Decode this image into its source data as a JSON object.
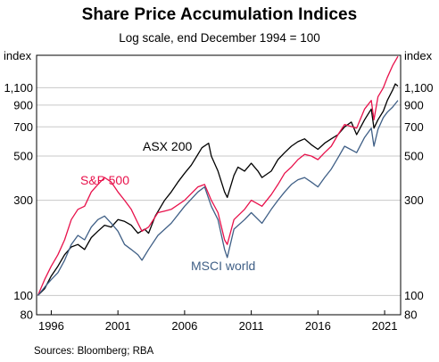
{
  "chart_data": {
    "type": "line",
    "title": "Share Price Accumulation Indices",
    "subtitle": "Log scale, end December 1994 = 100",
    "ylabel_left": "index",
    "ylabel_right": "index",
    "yscale": "log",
    "ylim": [
      80,
      1600
    ],
    "xlim": [
      1994.9,
      2022.2
    ],
    "yticks": [
      80,
      100,
      300,
      500,
      700,
      900,
      1100
    ],
    "ytick_labels": [
      "80",
      "100",
      "300",
      "500",
      "700",
      "900",
      "1,100"
    ],
    "xticks": [
      1996,
      2001,
      2006,
      2011,
      2016,
      2021
    ],
    "xtick_labels": [
      "1996",
      "2001",
      "2006",
      "2011",
      "2016",
      "2021"
    ],
    "grid": true,
    "source": "Sources: Bloomberg; RBA",
    "colors": {
      "asx": "#000000",
      "sp": "#e8114b",
      "msci": "#3f5f86",
      "grid": "#c8c8c8"
    },
    "series": [
      {
        "name": "ASX 200",
        "key": "asx",
        "x": [
          1995.0,
          1995.5,
          1996.0,
          1996.5,
          1997.0,
          1997.5,
          1998.0,
          1998.5,
          1999.0,
          1999.5,
          2000.0,
          2000.5,
          2001.0,
          2001.5,
          2002.0,
          2002.5,
          2003.0,
          2003.3,
          2003.8,
          2004.5,
          2005.0,
          2005.5,
          2006.0,
          2006.5,
          2007.0,
          2007.3,
          2007.8,
          2008.0,
          2008.5,
          2009.0,
          2009.2,
          2009.7,
          2010.0,
          2010.5,
          2011.0,
          2011.5,
          2011.8,
          2012.5,
          2013.0,
          2013.5,
          2014.0,
          2014.5,
          2015.0,
          2015.5,
          2016.0,
          2016.5,
          2017.0,
          2017.5,
          2018.0,
          2018.5,
          2018.9,
          2019.5,
          2020.0,
          2020.2,
          2020.5,
          2020.9,
          2021.2,
          2021.6,
          2021.8,
          2022.0
        ],
        "y": [
          100,
          108,
          125,
          140,
          160,
          175,
          180,
          170,
          195,
          210,
          225,
          220,
          240,
          235,
          225,
          205,
          215,
          205,
          250,
          300,
          330,
          370,
          410,
          450,
          510,
          550,
          580,
          500,
          420,
          330,
          310,
          400,
          440,
          420,
          460,
          420,
          390,
          420,
          480,
          520,
          560,
          590,
          610,
          570,
          540,
          580,
          610,
          640,
          700,
          740,
          640,
          760,
          860,
          690,
          760,
          840,
          950,
          1070,
          1150,
          1120
        ]
      },
      {
        "name": "S&P 500",
        "key": "sp",
        "x": [
          1995.0,
          1995.5,
          1996.0,
          1996.5,
          1997.0,
          1997.5,
          1998.0,
          1998.5,
          1999.0,
          1999.5,
          2000.0,
          2000.5,
          2001.0,
          2001.5,
          2002.0,
          2002.5,
          2002.8,
          2003.3,
          2004.0,
          2004.5,
          2005.0,
          2006.0,
          2007.0,
          2007.5,
          2008.0,
          2008.5,
          2009.0,
          2009.2,
          2009.7,
          2010.5,
          2011.0,
          2011.8,
          2012.5,
          2013.0,
          2013.5,
          2014.0,
          2014.5,
          2015.0,
          2015.5,
          2016.0,
          2016.5,
          2017.0,
          2017.5,
          2018.0,
          2018.9,
          2019.5,
          2020.0,
          2020.2,
          2020.5,
          2020.9,
          2021.2,
          2021.6,
          2022.0
        ],
        "y": [
          100,
          120,
          140,
          160,
          190,
          240,
          270,
          280,
          330,
          360,
          390,
          370,
          330,
          300,
          270,
          230,
          210,
          220,
          260,
          265,
          270,
          300,
          350,
          360,
          300,
          260,
          190,
          180,
          240,
          270,
          300,
          280,
          320,
          360,
          410,
          440,
          480,
          510,
          500,
          480,
          520,
          560,
          640,
          720,
          690,
          860,
          950,
          760,
          990,
          1100,
          1240,
          1420,
          1580
        ]
      },
      {
        "name": "MSCI world",
        "key": "msci",
        "x": [
          1995.0,
          1995.5,
          1996.0,
          1996.5,
          1997.0,
          1997.5,
          1998.0,
          1998.5,
          1999.0,
          1999.5,
          2000.0,
          2000.5,
          2001.0,
          2001.5,
          2002.0,
          2002.5,
          2002.8,
          2003.3,
          2004.0,
          2005.0,
          2006.0,
          2007.0,
          2007.5,
          2008.0,
          2008.5,
          2009.0,
          2009.2,
          2009.7,
          2010.5,
          2011.0,
          2011.8,
          2012.5,
          2013.0,
          2013.5,
          2014.0,
          2014.5,
          2015.0,
          2015.5,
          2016.0,
          2016.5,
          2017.0,
          2017.5,
          2018.0,
          2018.9,
          2019.5,
          2020.0,
          2020.2,
          2020.5,
          2020.9,
          2021.2,
          2021.6,
          2022.0
        ],
        "y": [
          100,
          110,
          120,
          130,
          150,
          180,
          200,
          190,
          220,
          240,
          250,
          230,
          210,
          180,
          170,
          160,
          150,
          170,
          200,
          230,
          280,
          330,
          350,
          280,
          240,
          170,
          155,
          215,
          240,
          260,
          230,
          270,
          300,
          330,
          360,
          380,
          390,
          370,
          350,
          390,
          430,
          490,
          560,
          520,
          620,
          690,
          560,
          680,
          780,
          830,
          880,
          950
        ]
      }
    ],
    "annotations": [
      {
        "text": "ASX 200",
        "series": "asx"
      },
      {
        "text": "S&P 500",
        "series": "sp"
      },
      {
        "text": "MSCI world",
        "series": "msci"
      }
    ]
  }
}
